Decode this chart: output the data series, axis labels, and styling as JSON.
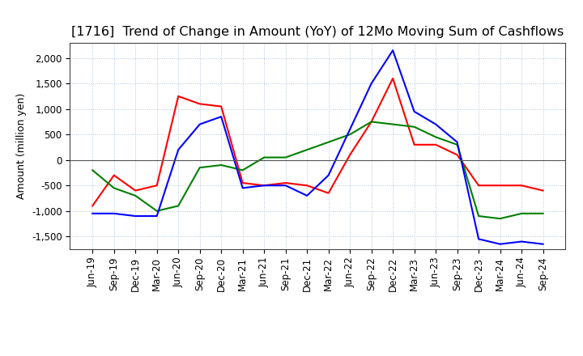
{
  "title": "[1716]  Trend of Change in Amount (YoY) of 12Mo Moving Sum of Cashflows",
  "ylabel": "Amount (million yen)",
  "xlabels": [
    "Jun-19",
    "Sep-19",
    "Dec-19",
    "Mar-20",
    "Jun-20",
    "Sep-20",
    "Dec-20",
    "Mar-21",
    "Jun-21",
    "Sep-21",
    "Dec-21",
    "Mar-22",
    "Jun-22",
    "Sep-22",
    "Dec-22",
    "Mar-23",
    "Jun-23",
    "Sep-23",
    "Dec-23",
    "Mar-24",
    "Jun-24",
    "Sep-24"
  ],
  "operating": [
    -900,
    -300,
    -600,
    -500,
    1250,
    1100,
    1050,
    -450,
    -500,
    -450,
    -500,
    -650,
    100,
    750,
    1600,
    300,
    300,
    100,
    -500,
    -500,
    -500,
    -600
  ],
  "investing": [
    -200,
    -550,
    -700,
    -1000,
    -900,
    -150,
    -100,
    -200,
    50,
    50,
    200,
    350,
    500,
    750,
    700,
    650,
    450,
    300,
    -1100,
    -1150,
    -1050,
    -1050
  ],
  "free": [
    -1050,
    -1050,
    -1100,
    -1100,
    200,
    700,
    850,
    -550,
    -500,
    -500,
    -700,
    -300,
    600,
    1500,
    2150,
    950,
    700,
    350,
    -1550,
    -1650,
    -1600,
    -1650
  ],
  "operating_color": "#ff0000",
  "investing_color": "#008000",
  "free_color": "#0000ff",
  "ylim": [
    -1750,
    2300
  ],
  "yticks": [
    -1500,
    -1000,
    -500,
    0,
    500,
    1000,
    1500,
    2000
  ],
  "background_color": "#ffffff",
  "grid_color": "#b0c4d8",
  "title_fontsize": 11.5,
  "axis_fontsize": 9,
  "tick_fontsize": 8.5,
  "legend_fontsize": 9.5
}
